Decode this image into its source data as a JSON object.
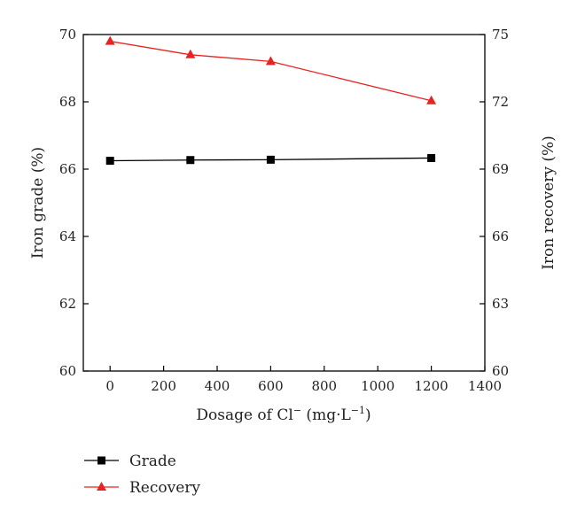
{
  "chart_data": {
    "type": "line",
    "title": "",
    "x": [
      0,
      300,
      600,
      1200
    ],
    "xlabel": {
      "prefix": "Dosage of Cl",
      "sup1": "−",
      "mid": " (mg·L",
      "sup2": "−1",
      "suffix": ")"
    },
    "xlim": [
      -100,
      1400
    ],
    "xticks": [
      0,
      200,
      400,
      600,
      800,
      1000,
      1200,
      1400
    ],
    "ylabel_left": "Iron grade (%)",
    "ylim_left": [
      60,
      70
    ],
    "yticks_left": [
      60,
      62,
      64,
      66,
      68,
      70
    ],
    "ylabel_right": "Iron recovery (%)",
    "ylim_right": [
      60,
      75
    ],
    "yticks_right": [
      60,
      63,
      66,
      69,
      72,
      75
    ],
    "grid": false,
    "legend_position": "below-left",
    "series": [
      {
        "name": "Grade",
        "axis": "left",
        "marker": "square",
        "color": "#000000",
        "values": [
          66.25,
          66.27,
          66.28,
          66.33
        ]
      },
      {
        "name": "Recovery",
        "axis": "right",
        "marker": "triangle",
        "color": "#e8231f",
        "values": [
          74.7,
          74.1,
          73.8,
          72.05
        ]
      }
    ]
  }
}
